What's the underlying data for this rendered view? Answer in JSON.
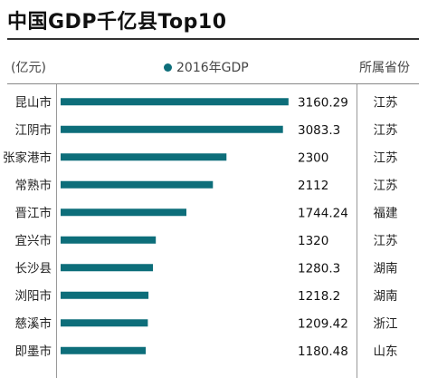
{
  "header": {
    "unit": "(亿元)",
    "province_column": "所属省份"
  },
  "chart_data": {
    "type": "bar",
    "orientation": "horizontal",
    "title": "中国GDP千亿县Top10",
    "categories": [
      "昆山市",
      "江阴市",
      "张家港市",
      "常熟市",
      "晋江市",
      "宜兴市",
      "长沙县",
      "浏阳市",
      "慈溪市",
      "即墨市"
    ],
    "series": [
      {
        "name": "2016年GDP",
        "values": [
          3160.29,
          3083.3,
          2300,
          2112,
          1744.24,
          1320,
          1280.3,
          1218.2,
          1209.42,
          1180.48
        ],
        "value_labels": [
          "3160.29",
          "3083.3",
          "2300",
          "2112",
          "1744.24",
          "1320",
          "1280.3",
          "1218.2",
          "1209.42",
          "1180.48"
        ],
        "color": "#0d6e7a"
      }
    ],
    "provinces": [
      "江苏",
      "江苏",
      "江苏",
      "江苏",
      "福建",
      "江苏",
      "湖南",
      "湖南",
      "浙江",
      "山东"
    ],
    "xlim": [
      0,
      3200
    ],
    "grid": false,
    "legend_position": "top-center"
  }
}
